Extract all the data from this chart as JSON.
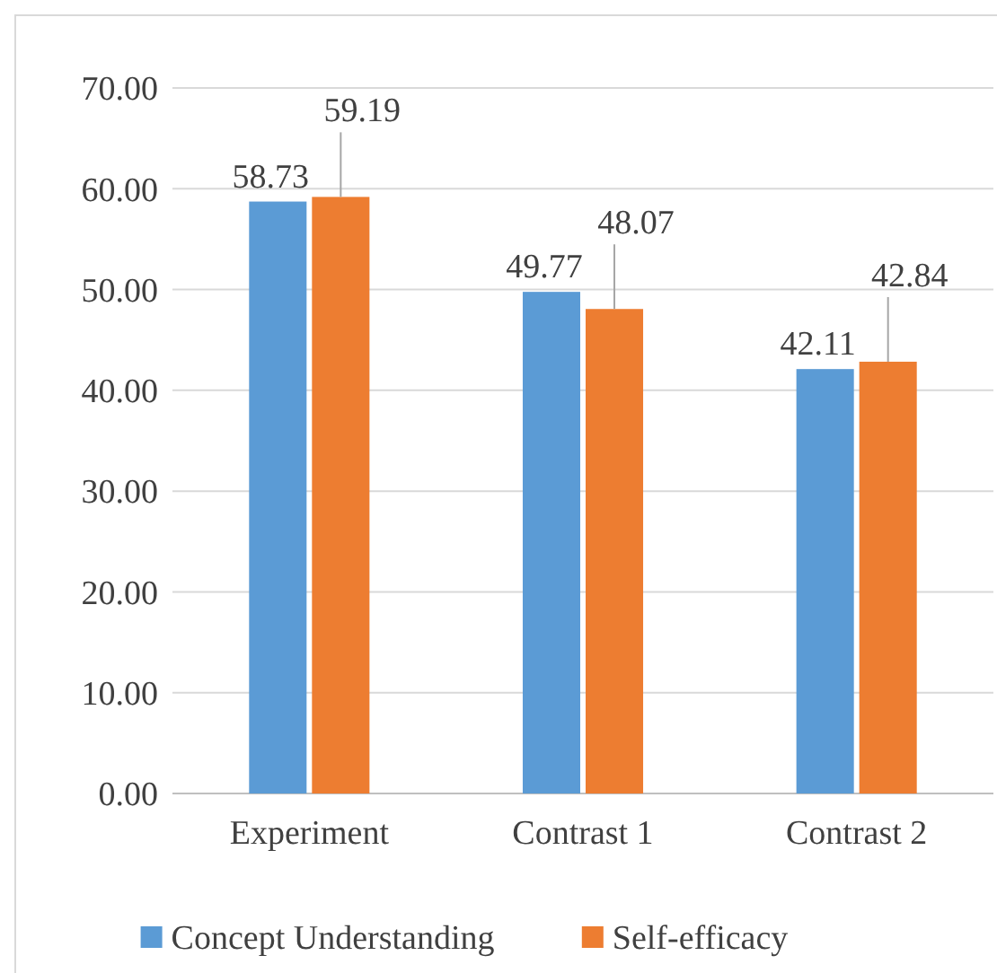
{
  "chart_data": {
    "type": "bar",
    "categories": [
      "Experiment",
      "Contrast 1",
      "Contrast 2"
    ],
    "series": [
      {
        "name": "Concept Understanding",
        "color": "#5b9bd5",
        "values": [
          58.73,
          49.77,
          42.11
        ]
      },
      {
        "name": "Self-efficacy",
        "color": "#ed7d31",
        "values": [
          59.19,
          48.07,
          42.84
        ]
      }
    ],
    "ylim": [
      0,
      70
    ],
    "yticks": [
      {
        "value": 0,
        "label": "0.00"
      },
      {
        "value": 10,
        "label": "10.00"
      },
      {
        "value": 20,
        "label": "20.00"
      },
      {
        "value": 30,
        "label": "30.00"
      },
      {
        "value": 40,
        "label": "40.00"
      },
      {
        "value": 50,
        "label": "50.00"
      },
      {
        "value": 60,
        "label": "60.00"
      },
      {
        "value": 70,
        "label": "70.00"
      }
    ],
    "grid": "y",
    "legend": "bottom",
    "data_labels": true
  }
}
